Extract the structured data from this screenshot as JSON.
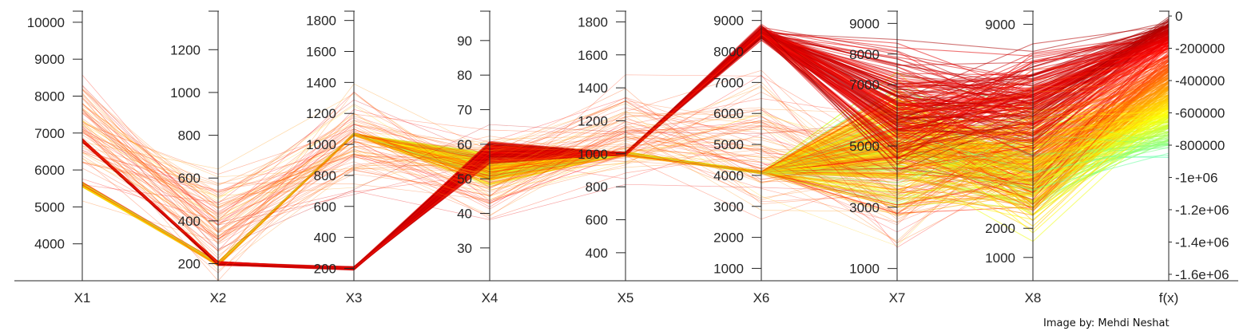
{
  "credit": "Image by: Mehdi Neshat",
  "chart_data": {
    "type": "parallel-coordinates",
    "colormap": "jet",
    "colors": {
      "axis": "#262626",
      "colormap_stops": [
        "#00008f",
        "#0000ff",
        "#0080ff",
        "#00ffff",
        "#80ff80",
        "#ffff00",
        "#ff8000",
        "#ff0000",
        "#800000"
      ]
    },
    "axes": [
      {
        "name": "X1",
        "ticks": [
          4000,
          5000,
          6000,
          7000,
          8000,
          9000,
          10000
        ],
        "range": [
          3000,
          10300
        ]
      },
      {
        "name": "X2",
        "ticks": [
          200,
          400,
          600,
          800,
          1000,
          1200
        ],
        "range": [
          120,
          1380
        ]
      },
      {
        "name": "X3",
        "ticks": [
          200,
          400,
          600,
          800,
          1000,
          1200,
          1400,
          1600,
          1800
        ],
        "range": [
          120,
          1860
        ]
      },
      {
        "name": "X4",
        "ticks": [
          30,
          40,
          50,
          60,
          70,
          80,
          90
        ],
        "range": [
          20.5,
          98.5
        ]
      },
      {
        "name": "X5",
        "ticks": [
          400,
          600,
          800,
          1000,
          1200,
          1400,
          1600,
          1800
        ],
        "range": [
          230,
          1865
        ]
      },
      {
        "name": "X6",
        "ticks": [
          1000,
          2000,
          3000,
          4000,
          5000,
          6000,
          7000,
          8000,
          9000
        ],
        "tick_labels": [
          "1000",
          "2000",
          "3000",
          "4000",
          "5000",
          "6000",
          "7000",
          "8000",
          "9000"
        ],
        "range": [
          600,
          9300
        ]
      },
      {
        "name": "X7",
        "ticks": [
          1000,
          3000,
          5000,
          7000,
          8000,
          9000
        ],
        "tick_labels": [
          "1000",
          "3000",
          "5000",
          "7000",
          "8000",
          "9000"
        ],
        "range": [
          600,
          9400
        ]
      },
      {
        "name": "X8",
        "ticks": [
          1000,
          2000,
          9000
        ],
        "tick_labels": [
          "1000",
          "2000",
          "9000"
        ],
        "range": [
          200,
          9450
        ]
      },
      {
        "name": "f(x)",
        "ticks": [
          -1600000,
          -1400000,
          -1200000,
          -1000000,
          -800000,
          -600000,
          -400000,
          -200000,
          0
        ],
        "tick_labels": [
          "-1.6e+06",
          "-1.4e+06",
          "-1.2e+06",
          "-1e+06",
          "-800000",
          "-600000",
          "-400000",
          "-200000",
          "0"
        ],
        "range": [
          -1640000,
          30000
        ]
      }
    ],
    "series_groups": [
      {
        "share": 0.55,
        "profile": [
          5600,
          200,
          1065,
          53,
          1000,
          4100,
          5000,
          4000,
          -520000
        ],
        "spread": [
          80,
          12,
          10,
          6,
          15,
          60,
          2800,
          2600,
          480000
        ]
      },
      {
        "share": 0.3,
        "profile": [
          6800,
          200,
          200,
          58,
          1000,
          8600,
          6200,
          6500,
          -120000
        ],
        "spread": [
          60,
          12,
          15,
          4,
          15,
          300,
          2600,
          2500,
          140000
        ]
      },
      {
        "share": 0.15,
        "profile": [
          7000,
          400,
          1000,
          50,
          1100,
          5000,
          4000,
          5000,
          -300000
        ],
        "spread": [
          2500,
          350,
          500,
          20,
          450,
          3000,
          3000,
          3000,
          300000
        ]
      }
    ]
  }
}
